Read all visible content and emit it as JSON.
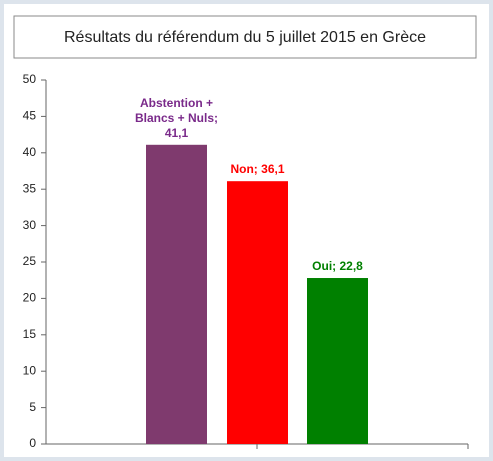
{
  "chart_data": {
    "type": "bar",
    "title": "Résultats du référendum du 5 juillet 2015 en Grèce",
    "values": [
      41.1,
      36.1,
      22.8
    ],
    "value_labels": [
      "Abstention + Blancs + Nuls; 41,1",
      "Non; 36,1",
      "Oui; 22,8"
    ],
    "colors": [
      "#7f3a6e",
      "#ff0000",
      "#008000"
    ],
    "label_colors": [
      "#7a2a8a",
      "#ff0000",
      "#008000"
    ],
    "ylim": [
      0,
      50
    ],
    "yticks": [
      0,
      5,
      10,
      15,
      20,
      25,
      30,
      35,
      40,
      45,
      50
    ],
    "grid": false
  }
}
